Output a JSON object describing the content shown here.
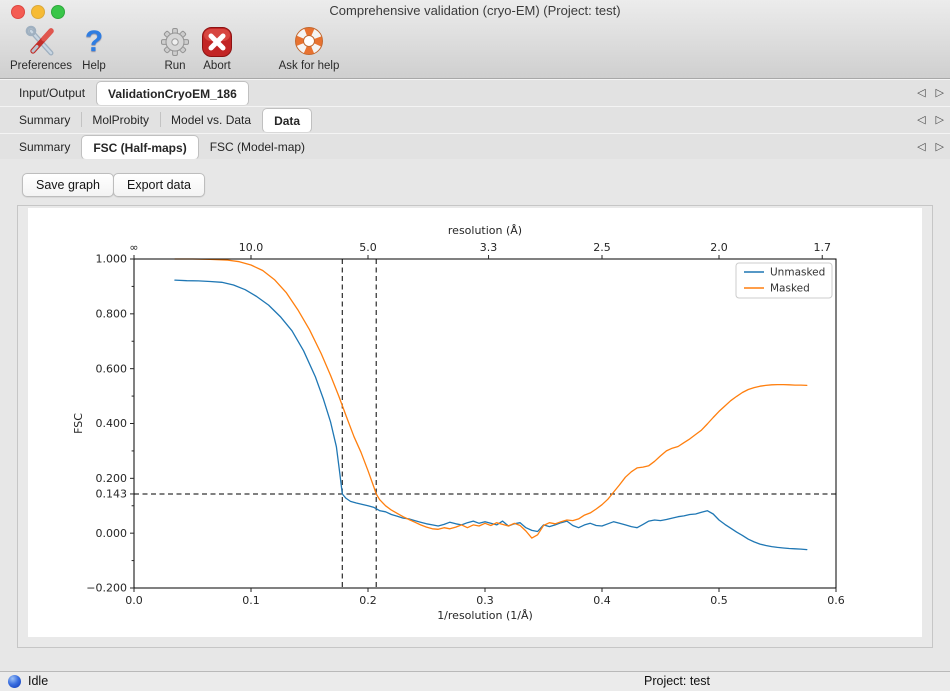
{
  "window": {
    "title": "Comprehensive validation (cryo-EM) (Project: test)"
  },
  "icons": {
    "tab_arrow_left": "◁",
    "tab_arrow_right": "▷",
    "help_glyph": "?"
  },
  "toolbar": {
    "items": [
      {
        "label": "Preferences",
        "icon": "tools-icon"
      },
      {
        "label": "Help",
        "icon": "question-mark-icon"
      },
      {
        "label": "Run",
        "icon": "gear-icon"
      },
      {
        "label": "Abort",
        "icon": "abort-x-icon"
      },
      {
        "label": "Ask for help",
        "icon": "lifebuoy-icon"
      }
    ]
  },
  "tab_rows": [
    {
      "tabs": [
        {
          "label": "Input/Output",
          "active": false
        },
        {
          "label": "ValidationCryoEM_186",
          "active": true
        }
      ]
    },
    {
      "tabs": [
        {
          "label": "Summary",
          "active": false
        },
        {
          "label": "MolProbity",
          "active": false
        },
        {
          "label": "Model vs. Data",
          "active": false
        },
        {
          "label": "Data",
          "active": true
        }
      ]
    },
    {
      "tabs": [
        {
          "label": "Summary",
          "active": false
        },
        {
          "label": "FSC (Half-maps)",
          "active": true
        },
        {
          "label": "FSC (Model-map)",
          "active": false
        }
      ]
    }
  ],
  "actions": {
    "save_graph": "Save graph",
    "export_data": "Export data"
  },
  "statusbar": {
    "status": "Idle",
    "project": "Project: test"
  },
  "chart_data": {
    "type": "line",
    "xlabel": "1/resolution (1/Å)",
    "ylabel": "FSC",
    "top_axis_label": "resolution (Å)",
    "xlim": [
      0.0,
      0.6
    ],
    "ylim": [
      -0.2,
      1.0
    ],
    "grid": false,
    "x_ticks": [
      0.0,
      0.1,
      0.2,
      0.3,
      0.4,
      0.5,
      0.6
    ],
    "x_tick_labels": [
      "0.0",
      "0.1",
      "0.2",
      "0.3",
      "0.4",
      "0.5",
      "0.6"
    ],
    "y_ticks": [
      -0.2,
      0.0,
      0.143,
      0.2,
      0.4,
      0.6,
      0.8,
      1.0
    ],
    "y_tick_labels": [
      "−0.200",
      "0.000",
      "0.143",
      "0.200",
      "0.400",
      "0.600",
      "0.800",
      "1.000"
    ],
    "y_minor_ticks": [
      -0.1,
      0.1,
      0.3,
      0.5,
      0.7,
      0.9
    ],
    "top_ticks": [
      {
        "label": "∞",
        "x": 0.0
      },
      {
        "label": "10.0",
        "x": 0.1
      },
      {
        "label": "5.0",
        "x": 0.2
      },
      {
        "label": "3.3",
        "x": 0.30303
      },
      {
        "label": "2.5",
        "x": 0.4
      },
      {
        "label": "2.0",
        "x": 0.5
      },
      {
        "label": "1.7",
        "x": 0.58824
      }
    ],
    "fsc_threshold_hline": 0.143,
    "resolution_vlines": [
      0.178,
      0.207
    ],
    "legend": {
      "position": "top-right",
      "entries": [
        "Unmasked",
        "Masked"
      ]
    },
    "series": [
      {
        "name": "Unmasked",
        "color": "#1f77b4",
        "points": [
          [
            0.035,
            0.923
          ],
          [
            0.045,
            0.921
          ],
          [
            0.055,
            0.92
          ],
          [
            0.065,
            0.918
          ],
          [
            0.075,
            0.915
          ],
          [
            0.085,
            0.905
          ],
          [
            0.095,
            0.888
          ],
          [
            0.105,
            0.863
          ],
          [
            0.115,
            0.832
          ],
          [
            0.125,
            0.79
          ],
          [
            0.135,
            0.738
          ],
          [
            0.145,
            0.665
          ],
          [
            0.155,
            0.57
          ],
          [
            0.162,
            0.488
          ],
          [
            0.168,
            0.405
          ],
          [
            0.173,
            0.315
          ],
          [
            0.176,
            0.215
          ],
          [
            0.178,
            0.143
          ],
          [
            0.181,
            0.128
          ],
          [
            0.185,
            0.116
          ],
          [
            0.19,
            0.11
          ],
          [
            0.195,
            0.105
          ],
          [
            0.2,
            0.1
          ],
          [
            0.205,
            0.094
          ],
          [
            0.21,
            0.082
          ],
          [
            0.215,
            0.078
          ],
          [
            0.22,
            0.068
          ],
          [
            0.225,
            0.062
          ],
          [
            0.23,
            0.055
          ],
          [
            0.235,
            0.052
          ],
          [
            0.24,
            0.046
          ],
          [
            0.245,
            0.04
          ],
          [
            0.25,
            0.034
          ],
          [
            0.255,
            0.03
          ],
          [
            0.26,
            0.026
          ],
          [
            0.265,
            0.032
          ],
          [
            0.27,
            0.04
          ],
          [
            0.275,
            0.034
          ],
          [
            0.28,
            0.03
          ],
          [
            0.285,
            0.038
          ],
          [
            0.29,
            0.044
          ],
          [
            0.295,
            0.036
          ],
          [
            0.3,
            0.042
          ],
          [
            0.305,
            0.036
          ],
          [
            0.31,
            0.03
          ],
          [
            0.315,
            0.044
          ],
          [
            0.32,
            0.026
          ],
          [
            0.325,
            0.034
          ],
          [
            0.33,
            0.038
          ],
          [
            0.335,
            0.02
          ],
          [
            0.34,
            0.01
          ],
          [
            0.345,
            0.006
          ],
          [
            0.35,
            0.03
          ],
          [
            0.355,
            0.024
          ],
          [
            0.36,
            0.03
          ],
          [
            0.365,
            0.038
          ],
          [
            0.37,
            0.044
          ],
          [
            0.375,
            0.028
          ],
          [
            0.38,
            0.02
          ],
          [
            0.385,
            0.03
          ],
          [
            0.39,
            0.036
          ],
          [
            0.395,
            0.028
          ],
          [
            0.4,
            0.026
          ],
          [
            0.405,
            0.034
          ],
          [
            0.41,
            0.042
          ],
          [
            0.415,
            0.036
          ],
          [
            0.42,
            0.03
          ],
          [
            0.425,
            0.024
          ],
          [
            0.43,
            0.02
          ],
          [
            0.435,
            0.032
          ],
          [
            0.44,
            0.044
          ],
          [
            0.445,
            0.048
          ],
          [
            0.45,
            0.046
          ],
          [
            0.455,
            0.05
          ],
          [
            0.46,
            0.055
          ],
          [
            0.465,
            0.06
          ],
          [
            0.47,
            0.063
          ],
          [
            0.475,
            0.068
          ],
          [
            0.48,
            0.07
          ],
          [
            0.485,
            0.076
          ],
          [
            0.49,
            0.082
          ],
          [
            0.495,
            0.07
          ],
          [
            0.5,
            0.048
          ],
          [
            0.505,
            0.032
          ],
          [
            0.51,
            0.018
          ],
          [
            0.515,
            0.004
          ],
          [
            0.52,
            -0.008
          ],
          [
            0.525,
            -0.022
          ],
          [
            0.53,
            -0.032
          ],
          [
            0.535,
            -0.04
          ],
          [
            0.54,
            -0.045
          ],
          [
            0.545,
            -0.049
          ],
          [
            0.55,
            -0.052
          ],
          [
            0.555,
            -0.054
          ],
          [
            0.56,
            -0.056
          ],
          [
            0.565,
            -0.057
          ],
          [
            0.57,
            -0.058
          ],
          [
            0.575,
            -0.06
          ]
        ]
      },
      {
        "name": "Masked",
        "color": "#ff7f0e",
        "points": [
          [
            0.035,
            1.0
          ],
          [
            0.05,
            1.0
          ],
          [
            0.065,
            0.999
          ],
          [
            0.08,
            0.996
          ],
          [
            0.09,
            0.99
          ],
          [
            0.1,
            0.978
          ],
          [
            0.11,
            0.958
          ],
          [
            0.12,
            0.925
          ],
          [
            0.13,
            0.878
          ],
          [
            0.14,
            0.815
          ],
          [
            0.15,
            0.742
          ],
          [
            0.16,
            0.655
          ],
          [
            0.168,
            0.575
          ],
          [
            0.175,
            0.5
          ],
          [
            0.182,
            0.42
          ],
          [
            0.188,
            0.352
          ],
          [
            0.194,
            0.295
          ],
          [
            0.2,
            0.228
          ],
          [
            0.205,
            0.168
          ],
          [
            0.207,
            0.143
          ],
          [
            0.21,
            0.122
          ],
          [
            0.215,
            0.1
          ],
          [
            0.22,
            0.084
          ],
          [
            0.225,
            0.072
          ],
          [
            0.23,
            0.06
          ],
          [
            0.235,
            0.05
          ],
          [
            0.24,
            0.04
          ],
          [
            0.245,
            0.03
          ],
          [
            0.25,
            0.022
          ],
          [
            0.255,
            0.016
          ],
          [
            0.26,
            0.014
          ],
          [
            0.265,
            0.02
          ],
          [
            0.27,
            0.016
          ],
          [
            0.275,
            0.022
          ],
          [
            0.28,
            0.03
          ],
          [
            0.285,
            0.02
          ],
          [
            0.29,
            0.03
          ],
          [
            0.295,
            0.026
          ],
          [
            0.3,
            0.036
          ],
          [
            0.305,
            0.028
          ],
          [
            0.31,
            0.038
          ],
          [
            0.315,
            0.032
          ],
          [
            0.32,
            0.026
          ],
          [
            0.325,
            0.036
          ],
          [
            0.33,
            0.028
          ],
          [
            0.335,
            0.008
          ],
          [
            0.34,
            -0.018
          ],
          [
            0.345,
            -0.006
          ],
          [
            0.35,
            0.028
          ],
          [
            0.355,
            0.038
          ],
          [
            0.36,
            0.034
          ],
          [
            0.365,
            0.042
          ],
          [
            0.37,
            0.048
          ],
          [
            0.375,
            0.046
          ],
          [
            0.38,
            0.052
          ],
          [
            0.385,
            0.066
          ],
          [
            0.39,
            0.074
          ],
          [
            0.395,
            0.088
          ],
          [
            0.4,
            0.104
          ],
          [
            0.405,
            0.124
          ],
          [
            0.41,
            0.15
          ],
          [
            0.415,
            0.176
          ],
          [
            0.42,
            0.204
          ],
          [
            0.425,
            0.224
          ],
          [
            0.43,
            0.238
          ],
          [
            0.435,
            0.241
          ],
          [
            0.44,
            0.246
          ],
          [
            0.445,
            0.262
          ],
          [
            0.45,
            0.282
          ],
          [
            0.455,
            0.3
          ],
          [
            0.46,
            0.31
          ],
          [
            0.465,
            0.316
          ],
          [
            0.47,
            0.33
          ],
          [
            0.475,
            0.344
          ],
          [
            0.48,
            0.36
          ],
          [
            0.485,
            0.376
          ],
          [
            0.49,
            0.398
          ],
          [
            0.495,
            0.422
          ],
          [
            0.5,
            0.444
          ],
          [
            0.505,
            0.464
          ],
          [
            0.51,
            0.483
          ],
          [
            0.515,
            0.499
          ],
          [
            0.52,
            0.513
          ],
          [
            0.525,
            0.524
          ],
          [
            0.53,
            0.531
          ],
          [
            0.535,
            0.536
          ],
          [
            0.54,
            0.539
          ],
          [
            0.545,
            0.541
          ],
          [
            0.55,
            0.542
          ],
          [
            0.555,
            0.542
          ],
          [
            0.56,
            0.541
          ],
          [
            0.565,
            0.54
          ],
          [
            0.57,
            0.54
          ],
          [
            0.575,
            0.539
          ]
        ]
      }
    ]
  }
}
